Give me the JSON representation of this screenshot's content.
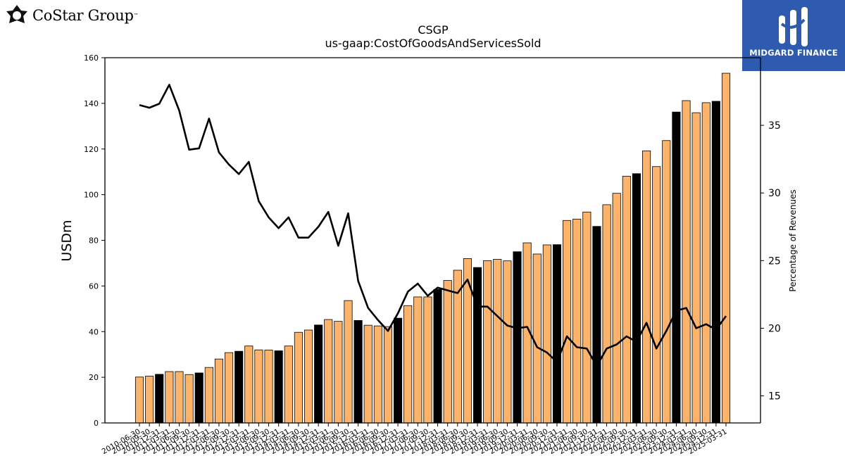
{
  "header": {
    "left_logo_text": "CoStar Group",
    "left_logo_tm": "™",
    "right_logo_text": "MIDGARD FINANCE"
  },
  "chart_data": {
    "type": "bar",
    "title": "CSGP",
    "subtitle": "us-gaap:CostOfGoodsAndServicesSold",
    "ylabel": "USDm",
    "y2label": "Percentage of Revenues",
    "ylim": [
      0,
      160
    ],
    "y2lim": [
      13,
      40
    ],
    "yticks": [
      0,
      20,
      40,
      60,
      80,
      100,
      120,
      140,
      160
    ],
    "y2ticks": [
      15,
      20,
      25,
      30,
      35
    ],
    "colors": {
      "quarter": "#FDB46A",
      "fiscal_year_end": "#000000",
      "line": "#000000"
    },
    "categories": [
      "2010-06-30",
      "2010-09-30",
      "2010-12-31",
      "2011-03-31",
      "2011-06-30",
      "2011-09-30",
      "2011-12-31",
      "2012-03-31",
      "2012-06-30",
      "2012-09-30",
      "2012-12-31",
      "2013-03-31",
      "2013-06-30",
      "2013-09-30",
      "2013-12-31",
      "2014-03-31",
      "2014-06-30",
      "2014-09-30",
      "2014-12-31",
      "2015-03-31",
      "2015-06-30",
      "2015-09-30",
      "2015-12-31",
      "2016-03-31",
      "2016-06-30",
      "2016-09-30",
      "2016-12-31",
      "2017-03-31",
      "2017-06-30",
      "2017-09-30",
      "2017-12-31",
      "2018-03-31",
      "2018-06-30",
      "2018-09-30",
      "2018-12-31",
      "2019-03-31",
      "2019-06-30",
      "2019-09-30",
      "2019-12-31",
      "2020-03-31",
      "2020-06-30",
      "2020-09-30",
      "2020-12-31",
      "2021-03-31",
      "2021-06-30",
      "2021-09-30",
      "2021-12-31",
      "2022-03-31",
      "2022-06-30",
      "2022-09-30",
      "2022-12-31",
      "2023-03-31",
      "2023-06-30",
      "2023-09-30",
      "2023-12-31",
      "2024-03-31",
      "2024-06-30",
      "2024-09-30",
      "2024-12-31",
      "2025-03-31"
    ],
    "series": [
      {
        "type": "bar",
        "values": [
          20.1,
          20.5,
          21.3,
          22.5,
          22.5,
          21.2,
          21.9,
          24.3,
          28.0,
          30.8,
          31.4,
          33.7,
          32.0,
          31.9,
          31.6,
          33.7,
          39.7,
          40.7,
          42.9,
          45.3,
          44.5,
          53.6,
          44.9,
          42.8,
          42.5,
          42.2,
          45.9,
          51.4,
          55.2,
          55.2,
          58.5,
          62.4,
          66.9,
          72.0,
          68.1,
          71.1,
          71.7,
          71.0,
          75.0,
          78.9,
          74.0,
          78.0,
          78.1,
          88.7,
          89.3,
          92.4,
          86.1,
          95.6,
          100.6,
          108.1,
          109.2,
          119.2,
          112.3,
          123.7,
          136.2,
          141.2,
          135.9,
          140.3,
          140.9,
          153.2
        ],
        "fiscal_year_end": [
          false,
          false,
          true,
          false,
          false,
          false,
          true,
          false,
          false,
          false,
          true,
          false,
          false,
          false,
          true,
          false,
          false,
          false,
          true,
          false,
          false,
          false,
          true,
          false,
          false,
          false,
          true,
          false,
          false,
          false,
          true,
          false,
          false,
          false,
          true,
          false,
          false,
          false,
          true,
          false,
          false,
          false,
          true,
          false,
          false,
          false,
          true,
          false,
          false,
          false,
          true,
          false,
          false,
          false,
          true,
          false,
          false,
          false,
          true,
          false
        ]
      },
      {
        "type": "line",
        "axis": "right",
        "values": [
          36.5,
          36.3,
          36.6,
          38.0,
          36.1,
          33.2,
          33.3,
          35.5,
          33.0,
          32.1,
          31.4,
          32.3,
          29.4,
          28.2,
          27.4,
          28.2,
          26.7,
          26.7,
          27.5,
          28.6,
          26.1,
          28.5,
          23.5,
          21.5,
          20.6,
          19.8,
          21.1,
          22.7,
          23.3,
          22.4,
          23.0,
          22.8,
          22.6,
          23.6,
          21.6,
          21.6,
          20.9,
          20.2,
          20.0,
          20.1,
          18.6,
          18.2,
          17.5,
          19.4,
          18.6,
          18.5,
          17.2,
          18.5,
          18.8,
          19.4,
          19.0,
          20.4,
          18.5,
          19.8,
          21.3,
          21.5,
          20.0,
          20.3,
          19.9,
          20.9
        ]
      }
    ],
    "grid": false
  }
}
